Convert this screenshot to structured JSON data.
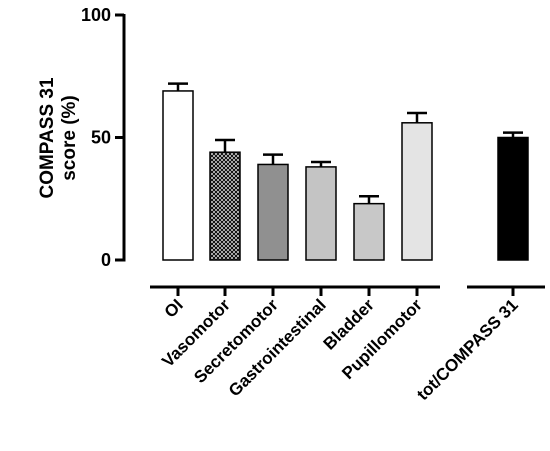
{
  "chart_data": {
    "type": "bar",
    "title": "",
    "ylabel_line1": "COMPASS 31",
    "ylabel_line2": "score (%)",
    "xlabel": "",
    "ylim": [
      0,
      100
    ],
    "yticks": [
      0,
      50,
      100
    ],
    "categories": [
      "OI",
      "Vasomotor",
      "Secretomotor",
      "Gastrointestinal",
      "Bladder",
      "Pupillomotor",
      "tot/COMPASS 31"
    ],
    "values": [
      69,
      44,
      39,
      38,
      23,
      56,
      50
    ],
    "errors": [
      3,
      5,
      4,
      2,
      3,
      4,
      2
    ],
    "fills": [
      "#ffffff",
      "crosshatch",
      "#909090",
      "#c4c4c4",
      "#c8c8c8",
      "#e4e4e4",
      "#000000"
    ],
    "grid": false,
    "legend": "none"
  }
}
